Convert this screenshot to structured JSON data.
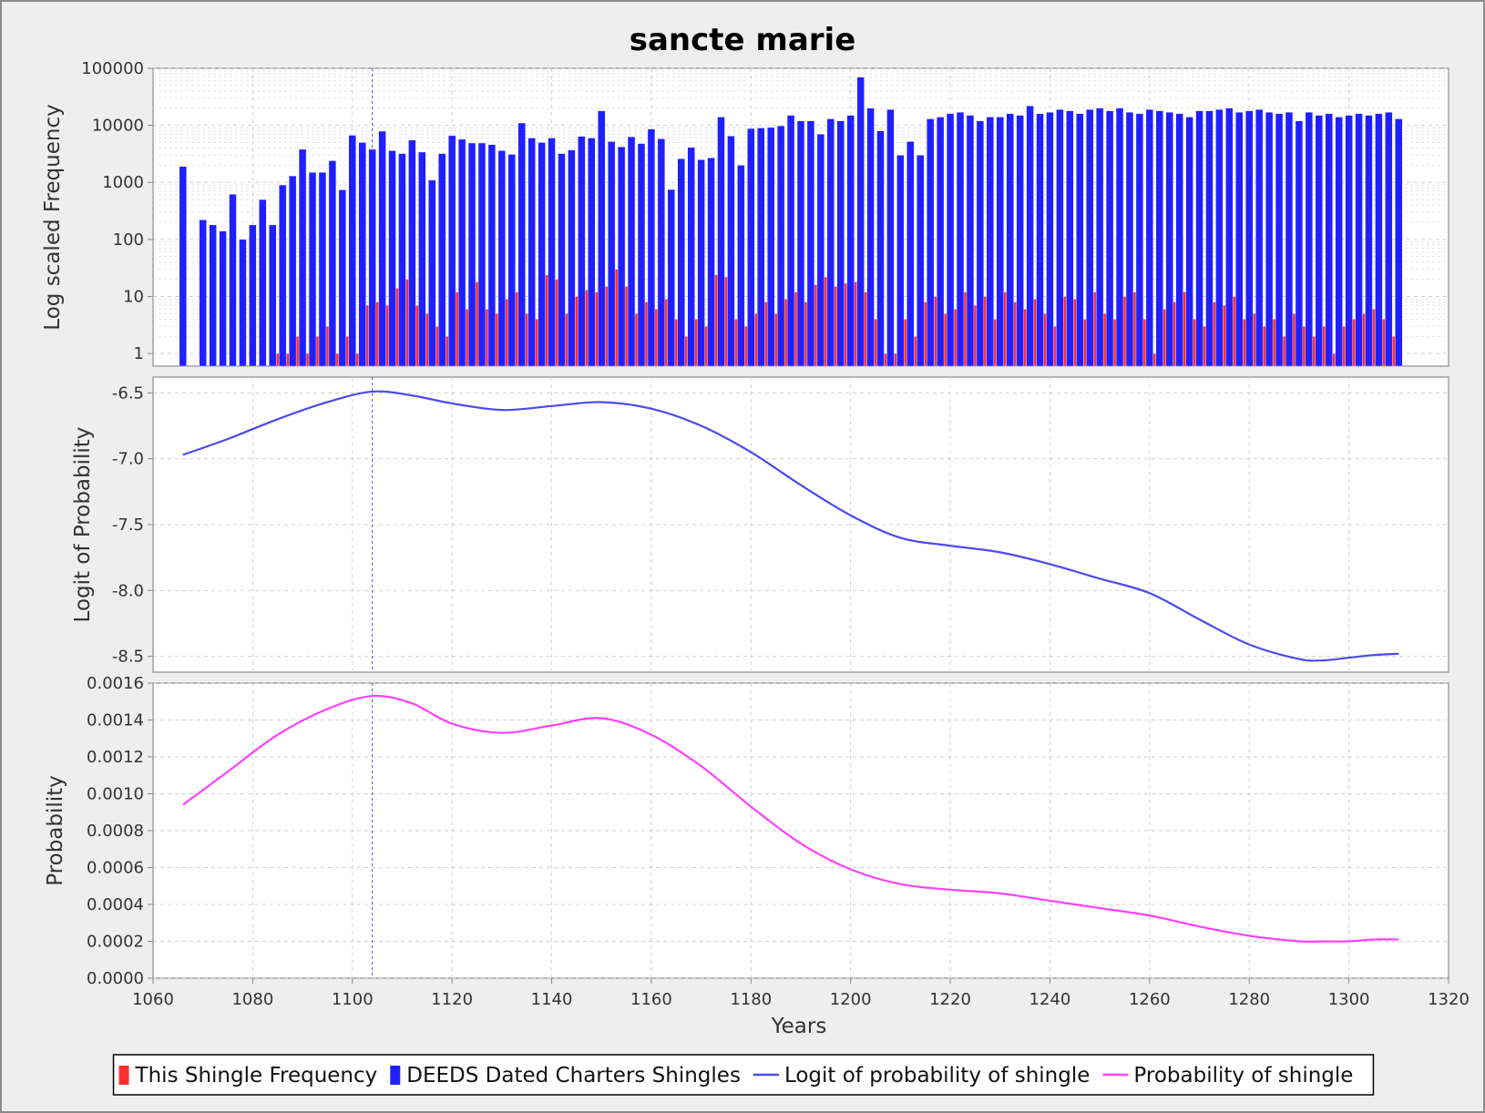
{
  "chart_data": {
    "type": "bar+line",
    "title": "sancte marie",
    "xlabel": "Years",
    "xlim": [
      1060,
      1320
    ],
    "xticks": [
      "1060",
      "1080",
      "1100",
      "1120",
      "1140",
      "1160",
      "1180",
      "1200",
      "1220",
      "1240",
      "1260",
      "1280",
      "1300",
      "1320"
    ],
    "marker_year": 1104,
    "panels": [
      {
        "id": "frequency",
        "type": "bar",
        "ylabel": "Log scaled Frequency",
        "yscale": "log",
        "ylim": [
          0.6,
          100000
        ],
        "yticks": [
          "1",
          "10",
          "100",
          "1000",
          "10000",
          "100000"
        ],
        "grid": true
      },
      {
        "id": "logit",
        "type": "line",
        "ylabel": "Logit of Probability",
        "ylim": [
          -8.62,
          -6.38
        ],
        "yticks": [
          "-6.5",
          "-7.0",
          "-7.5",
          "-8.0",
          "-8.5"
        ],
        "grid": true
      },
      {
        "id": "probability",
        "type": "line",
        "ylabel": "Probability",
        "ylim": [
          0,
          0.0016
        ],
        "yticks": [
          "0.0000",
          "0.0002",
          "0.0004",
          "0.0006",
          "0.0008",
          "0.0010",
          "0.0012",
          "0.0014",
          "0.0016"
        ],
        "grid": true
      }
    ],
    "series": [
      {
        "name": "This Shingle Frequency",
        "panel": "frequency",
        "color": "#ff3030",
        "years": [
          1085,
          1087,
          1089,
          1091,
          1093,
          1095,
          1097,
          1099,
          1101,
          1103,
          1105,
          1107,
          1109,
          1111,
          1113,
          1115,
          1117,
          1119,
          1121,
          1123,
          1125,
          1127,
          1129,
          1131,
          1133,
          1135,
          1137,
          1139,
          1141,
          1143,
          1145,
          1147,
          1149,
          1151,
          1153,
          1155,
          1157,
          1159,
          1161,
          1163,
          1165,
          1167,
          1169,
          1171,
          1173,
          1175,
          1177,
          1179,
          1181,
          1183,
          1185,
          1187,
          1189,
          1191,
          1193,
          1195,
          1197,
          1199,
          1201,
          1203,
          1205,
          1207,
          1209,
          1211,
          1213,
          1215,
          1217,
          1219,
          1221,
          1223,
          1225,
          1227,
          1229,
          1231,
          1233,
          1235,
          1237,
          1239,
          1241,
          1243,
          1245,
          1247,
          1249,
          1251,
          1253,
          1255,
          1257,
          1259,
          1261,
          1263,
          1265,
          1267,
          1269,
          1271,
          1273,
          1275,
          1277,
          1279,
          1281,
          1283,
          1285,
          1287,
          1289,
          1291,
          1293,
          1295,
          1297,
          1299,
          1301,
          1303,
          1305,
          1307,
          1309
        ],
        "values": [
          1,
          1,
          2,
          1,
          2,
          3,
          1,
          2,
          1,
          7,
          8,
          7,
          14,
          20,
          7,
          5,
          3,
          2,
          12,
          6,
          18,
          6,
          5,
          9,
          12,
          5,
          4,
          24,
          20,
          5,
          10,
          13,
          12,
          15,
          30,
          15,
          5,
          8,
          6,
          9,
          4,
          2,
          4,
          3,
          24,
          22,
          4,
          3,
          5,
          8,
          5,
          9,
          12,
          8,
          16,
          22,
          15,
          17,
          18,
          12,
          4,
          1,
          1,
          4,
          2,
          8,
          10,
          5,
          6,
          12,
          7,
          10,
          4,
          12,
          8,
          6,
          9,
          5,
          3,
          10,
          9,
          4,
          12,
          5,
          4,
          10,
          12,
          4,
          1,
          6,
          8,
          12,
          4,
          3,
          8,
          7,
          10,
          4,
          5,
          3,
          4,
          2,
          5,
          3,
          2,
          3,
          1,
          3,
          4,
          5,
          6,
          4,
          2
        ]
      },
      {
        "name": "DEEDS Dated Charters Shingles",
        "panel": "frequency",
        "color": "#2020ff",
        "years": [
          1066,
          1070,
          1072,
          1074,
          1076,
          1078,
          1080,
          1082,
          1084,
          1086,
          1088,
          1090,
          1092,
          1094,
          1096,
          1098,
          1100,
          1102,
          1104,
          1106,
          1108,
          1110,
          1112,
          1114,
          1116,
          1118,
          1120,
          1122,
          1124,
          1126,
          1128,
          1130,
          1132,
          1134,
          1136,
          1138,
          1140,
          1142,
          1144,
          1146,
          1148,
          1150,
          1152,
          1154,
          1156,
          1158,
          1160,
          1162,
          1164,
          1166,
          1168,
          1170,
          1172,
          1174,
          1176,
          1178,
          1180,
          1182,
          1184,
          1186,
          1188,
          1190,
          1192,
          1194,
          1196,
          1198,
          1200,
          1202,
          1204,
          1206,
          1208,
          1210,
          1212,
          1214,
          1216,
          1218,
          1220,
          1222,
          1224,
          1226,
          1228,
          1230,
          1232,
          1234,
          1236,
          1238,
          1240,
          1242,
          1244,
          1246,
          1248,
          1250,
          1252,
          1254,
          1256,
          1258,
          1260,
          1262,
          1264,
          1266,
          1268,
          1270,
          1272,
          1274,
          1276,
          1278,
          1280,
          1282,
          1284,
          1286,
          1288,
          1290,
          1292,
          1294,
          1296,
          1298,
          1300,
          1302,
          1304,
          1306,
          1308,
          1310
        ],
        "values": [
          1900,
          220,
          180,
          140,
          620,
          100,
          180,
          500,
          180,
          900,
          1300,
          3800,
          1500,
          1500,
          2400,
          740,
          6700,
          5000,
          3800,
          7900,
          3600,
          3200,
          5500,
          3400,
          1100,
          3200,
          6600,
          5700,
          4900,
          4900,
          4600,
          3600,
          3100,
          11000,
          6000,
          5000,
          6000,
          3200,
          3700,
          6400,
          6000,
          18000,
          5200,
          4200,
          6300,
          4800,
          8600,
          5800,
          750,
          2600,
          4100,
          2500,
          2700,
          14000,
          6500,
          2000,
          8800,
          9000,
          9200,
          9800,
          15000,
          12000,
          12000,
          7000,
          13000,
          12000,
          15000,
          70000,
          20000,
          8000,
          19000,
          3000,
          5200,
          3000,
          13000,
          14000,
          16000,
          17000,
          15000,
          12000,
          14000,
          14000,
          16000,
          15000,
          22000,
          16000,
          17000,
          19000,
          18000,
          16000,
          19000,
          20000,
          18000,
          20000,
          17000,
          16000,
          19000,
          18000,
          17000,
          16000,
          14000,
          18000,
          18000,
          19000,
          20000,
          17000,
          18000,
          19000,
          17000,
          16000,
          17000,
          12000,
          17000,
          15000,
          16000,
          14000,
          15000,
          16000,
          15000,
          16000,
          17000,
          13000
        ]
      },
      {
        "name": "Logit of probability of shingle",
        "panel": "logit",
        "color": "#4a4af0",
        "x": [
          1066,
          1075,
          1085,
          1095,
          1104,
          1112,
          1120,
          1130,
          1140,
          1150,
          1160,
          1170,
          1180,
          1190,
          1200,
          1210,
          1220,
          1230,
          1240,
          1250,
          1260,
          1270,
          1280,
          1290,
          1295,
          1300,
          1305,
          1310
        ],
        "y": [
          -6.97,
          -6.85,
          -6.7,
          -6.57,
          -6.49,
          -6.52,
          -6.58,
          -6.63,
          -6.6,
          -6.57,
          -6.62,
          -6.75,
          -6.95,
          -7.2,
          -7.43,
          -7.6,
          -7.66,
          -7.71,
          -7.8,
          -7.91,
          -8.02,
          -8.22,
          -8.41,
          -8.52,
          -8.53,
          -8.51,
          -8.49,
          -8.48
        ]
      },
      {
        "name": "Probability of shingle",
        "panel": "probability",
        "color": "#ff40ff",
        "x": [
          1066,
          1075,
          1085,
          1095,
          1104,
          1112,
          1120,
          1130,
          1140,
          1150,
          1160,
          1170,
          1180,
          1190,
          1200,
          1210,
          1220,
          1230,
          1240,
          1250,
          1260,
          1270,
          1280,
          1290,
          1295,
          1300,
          1305,
          1310
        ],
        "y": [
          0.00094,
          0.00112,
          0.00132,
          0.00146,
          0.00153,
          0.00149,
          0.00138,
          0.00133,
          0.00137,
          0.00141,
          0.00132,
          0.00115,
          0.00093,
          0.00073,
          0.00059,
          0.00051,
          0.00048,
          0.00046,
          0.00042,
          0.00038,
          0.00034,
          0.00028,
          0.00023,
          0.0002,
          0.0002,
          0.0002,
          0.00021,
          0.00021
        ]
      }
    ],
    "legend_position": "bottom-center"
  }
}
